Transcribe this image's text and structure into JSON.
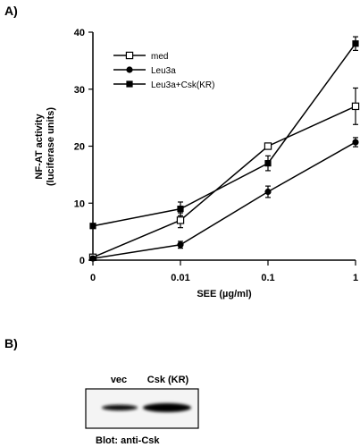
{
  "panel_a": {
    "label": "A)"
  },
  "panel_b": {
    "label": "B)",
    "lane_labels": [
      "vec",
      "Csk (KR)"
    ],
    "caption": "Blot: anti-Csk"
  },
  "chart_data": {
    "type": "line",
    "title": "",
    "xlabel": "SEE (µg/ml)",
    "ylabel": "NF-AT activity",
    "ylabel_units": "(luciferase units)",
    "categories": [
      "0",
      "0.01",
      "0.1",
      "1"
    ],
    "ylim": [
      0,
      40
    ],
    "yticks": [
      "0",
      "10",
      "20",
      "30",
      "40"
    ],
    "grid": false,
    "legend_position": "top-left",
    "series": [
      {
        "name": "med",
        "marker": "open-square",
        "values": [
          0.5,
          7,
          20,
          27
        ],
        "errors": [
          0.3,
          1.3,
          0.5,
          3.2
        ]
      },
      {
        "name": "Leu3a",
        "marker": "filled-circle",
        "values": [
          0.3,
          2.7,
          12,
          20.7
        ],
        "errors": [
          0.3,
          0.6,
          1.0,
          0.8
        ]
      },
      {
        "name": "Leu3a+Csk(KR)",
        "marker": "filled-square",
        "values": [
          6,
          9,
          17,
          38
        ],
        "errors": [
          0.3,
          1.2,
          1.3,
          1.2
        ]
      }
    ]
  }
}
